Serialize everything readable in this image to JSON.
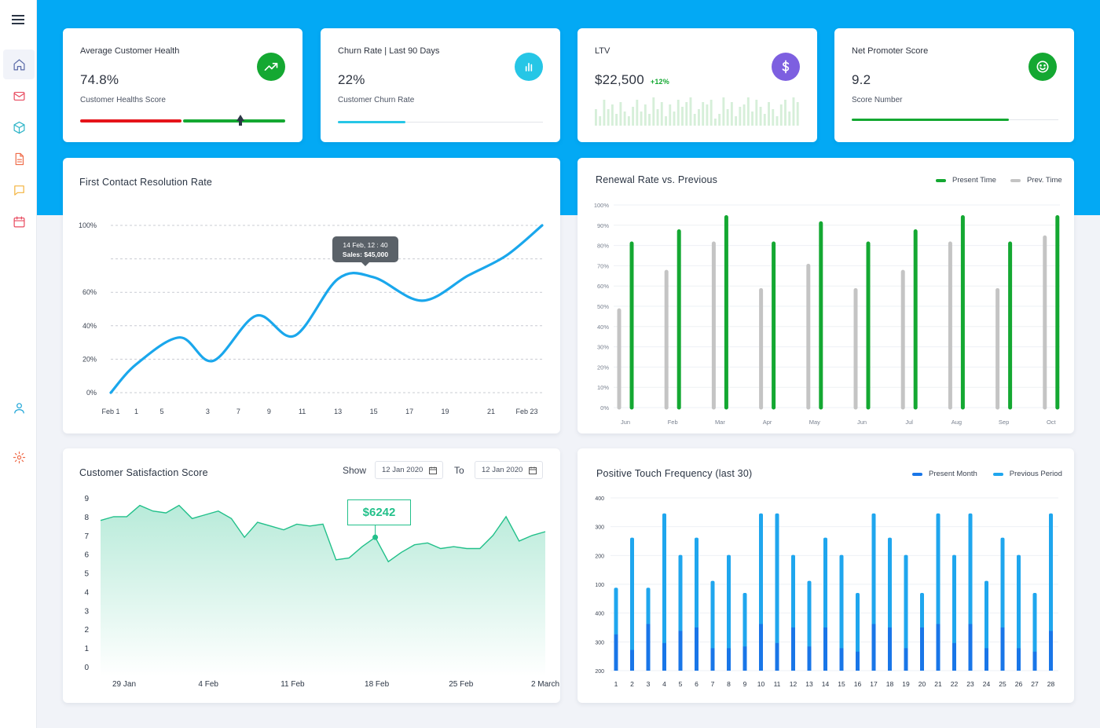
{
  "colors": {
    "brand_blue": "#03a9f4",
    "green": "#14a832",
    "red": "#e5141a",
    "cyan": "#26c6e6",
    "purple": "#7d5fe0",
    "grey_bar": "#c4c4c4",
    "teal_line": "#22c08a",
    "dark_blue": "#1976e8",
    "light_blue": "#1fa6ee"
  },
  "sidebar": {
    "items": [
      {
        "name": "home",
        "icon": "home-icon",
        "color": "#5a6aa8"
      },
      {
        "name": "mail",
        "icon": "mail-icon",
        "color": "#e84a5f"
      },
      {
        "name": "box",
        "icon": "cube-icon",
        "color": "#2fb5c8"
      },
      {
        "name": "document",
        "icon": "document-icon",
        "color": "#ef6c4a"
      },
      {
        "name": "chat",
        "icon": "chat-icon",
        "color": "#f3b23c"
      },
      {
        "name": "calendar",
        "icon": "calendar-icon",
        "color": "#e84a5f"
      },
      {
        "name": "user",
        "icon": "user-icon",
        "color": "#1fa6d8"
      },
      {
        "name": "settings",
        "icon": "gear-icon",
        "color": "#ef6c4a"
      }
    ]
  },
  "kpis": {
    "health": {
      "title": "Average Customer Health",
      "value": "74.8%",
      "sub": "Customer Healths Score",
      "icon": "trending-up-icon",
      "progress": 0.78
    },
    "churn": {
      "title": "Churn Rate  | Last 90 Days",
      "value": "22%",
      "sub": "Customer Churn Rate",
      "icon": "bar-chart-icon",
      "progress": 0.33
    },
    "ltv": {
      "title": "LTV",
      "value": "$22,500",
      "delta": "+12%",
      "icon": "dollar-icon",
      "spark": [
        0.5,
        0.2,
        0.9,
        0.5,
        0.7,
        0.3,
        0.8,
        0.4,
        0.2,
        0.6,
        0.9,
        0.4,
        0.7,
        0.3,
        1.0,
        0.5,
        0.8,
        0.2,
        0.7,
        0.4,
        0.9,
        0.6,
        0.8,
        1.0,
        0.3,
        0.5,
        0.8,
        0.7,
        0.9,
        0.1,
        0.3,
        1.0,
        0.5,
        0.8,
        0.2,
        0.6,
        0.7,
        1.0,
        0.4,
        0.9,
        0.6,
        0.3,
        0.8,
        0.5,
        0.2,
        0.7,
        0.9,
        0.4,
        1.0,
        0.8
      ]
    },
    "nps": {
      "title": "Net Promoter Score",
      "value": "9.2",
      "sub": "Score Number",
      "icon": "smile-icon",
      "progress": 0.76
    }
  },
  "fcr": {
    "title": "First Contact Resolution Rate",
    "tooltip": {
      "line1": "14 Feb, 12 : 40",
      "line2": "Sales: $45,000"
    },
    "chart_data": {
      "type": "line",
      "title": "First Contact Resolution Rate",
      "y_ticks": [
        {
          "v": 100,
          "label": "100%"
        },
        {
          "v": 80,
          "label": ""
        },
        {
          "v": 60,
          "label": "60%"
        },
        {
          "v": 40,
          "label": "40%"
        },
        {
          "v": 20,
          "label": "20%"
        },
        {
          "v": 0,
          "label": "0%"
        }
      ],
      "x_ticks": [
        {
          "pos": 0,
          "label": "Feb 1"
        },
        {
          "pos": 1,
          "label": "1"
        },
        {
          "pos": 2,
          "label": "5"
        },
        {
          "pos": 3.8,
          "label": "3"
        },
        {
          "pos": 5,
          "label": "7"
        },
        {
          "pos": 6.2,
          "label": "9"
        },
        {
          "pos": 7.5,
          "label": "11"
        },
        {
          "pos": 8.9,
          "label": "13"
        },
        {
          "pos": 10.3,
          "label": "15"
        },
        {
          "pos": 11.7,
          "label": "17"
        },
        {
          "pos": 13.1,
          "label": "19"
        },
        {
          "pos": 14.9,
          "label": "21"
        },
        {
          "pos": 16.3,
          "label": "Feb 23"
        }
      ],
      "xlim": [
        0,
        16.9
      ],
      "ylim": [
        0,
        100
      ],
      "points": [
        [
          0,
          0
        ],
        [
          1.0,
          17
        ],
        [
          2.7,
          33
        ],
        [
          4.0,
          19
        ],
        [
          5.7,
          46
        ],
        [
          7.2,
          34
        ],
        [
          8.9,
          68
        ],
        [
          10.3,
          69
        ],
        [
          12.2,
          55
        ],
        [
          14.0,
          70
        ],
        [
          15.5,
          82
        ],
        [
          16.9,
          100
        ]
      ]
    }
  },
  "renewal": {
    "title": "Renewal Rate vs. Previous",
    "legend": {
      "present": "Present Time",
      "prev": "Prev. Time"
    },
    "chart_data": {
      "type": "bar",
      "categories": [
        "Jun",
        "Feb",
        "Mar",
        "Apr",
        "May",
        "Jun",
        "Jul",
        "Aug",
        "Sep",
        "Oct"
      ],
      "y_labels": [
        "0%",
        "10%",
        "20%",
        "30%",
        "40%",
        "50%",
        "60%",
        "70%",
        "80%",
        "90%",
        "100%"
      ],
      "ylim": [
        0,
        100
      ],
      "series": [
        {
          "name": "Prev. Time",
          "values": [
            48,
            67,
            81,
            58,
            70,
            58,
            67,
            81,
            58,
            84
          ]
        },
        {
          "name": "Present Time",
          "values": [
            81,
            87,
            94,
            81,
            91,
            81,
            87,
            94,
            81,
            94
          ]
        }
      ]
    }
  },
  "csat": {
    "title": "Customer Satisfaction Score",
    "show_label": "Show",
    "to_label": "To",
    "date_from": "12 Jan 2020",
    "date_to": "12 Jan 2020",
    "callout": "$6242",
    "chart_data": {
      "type": "area",
      "title": "Customer Satisfaction Score",
      "y_labels": [
        "0",
        "1",
        "2",
        "3",
        "4",
        "5",
        "6",
        "7",
        "8",
        "9"
      ],
      "ylim": [
        0,
        9
      ],
      "x_labels": [
        "29 Jan",
        "4 Feb",
        "11 Feb",
        "18 Feb",
        "25 Feb",
        "2 March"
      ],
      "values": [
        7.8,
        8.0,
        8.0,
        8.6,
        8.3,
        8.2,
        8.6,
        7.9,
        8.1,
        8.3,
        7.9,
        6.9,
        7.7,
        7.5,
        7.3,
        7.6,
        7.5,
        7.6,
        5.7,
        5.8,
        6.4,
        6.9,
        5.6,
        6.1,
        6.5,
        6.6,
        6.3,
        6.4,
        6.3,
        6.3,
        7.0,
        8.0,
        6.7,
        7.0,
        7.2
      ],
      "callout_index": 21
    }
  },
  "ptf": {
    "title": "Positive Touch Frequency (last 30)",
    "legend": {
      "present": "Present Month",
      "prev": "Previous Period"
    },
    "chart_data": {
      "type": "bar",
      "categories": [
        "1",
        "2",
        "3",
        "4",
        "5",
        "6",
        "7",
        "8",
        "9",
        "10",
        "11",
        "12",
        "13",
        "14",
        "15",
        "16",
        "17",
        "18",
        "19",
        "20",
        "21",
        "22",
        "23",
        "24",
        "25",
        "26",
        "27",
        "28"
      ],
      "y_labels": [
        "200",
        "300",
        "400",
        "100",
        "200",
        "300",
        "400"
      ],
      "series": [
        {
          "name": "Previous Period",
          "values": [
            0.48,
            0.77,
            0.48,
            0.91,
            0.67,
            0.77,
            0.52,
            0.67,
            0.45,
            0.91,
            0.91,
            0.67,
            0.52,
            0.77,
            0.67,
            0.45,
            0.91,
            0.77,
            0.67,
            0.45,
            0.91,
            0.67,
            0.91,
            0.52,
            0.77,
            0.67,
            0.45,
            0.91
          ]
        },
        {
          "name": "Present Month",
          "values": [
            0.21,
            0.12,
            0.27,
            0.16,
            0.23,
            0.25,
            0.13,
            0.13,
            0.14,
            0.27,
            0.16,
            0.25,
            0.14,
            0.25,
            0.13,
            0.11,
            0.27,
            0.25,
            0.13,
            0.25,
            0.27,
            0.16,
            0.27,
            0.13,
            0.25,
            0.13,
            0.11,
            0.23
          ]
        }
      ]
    }
  }
}
